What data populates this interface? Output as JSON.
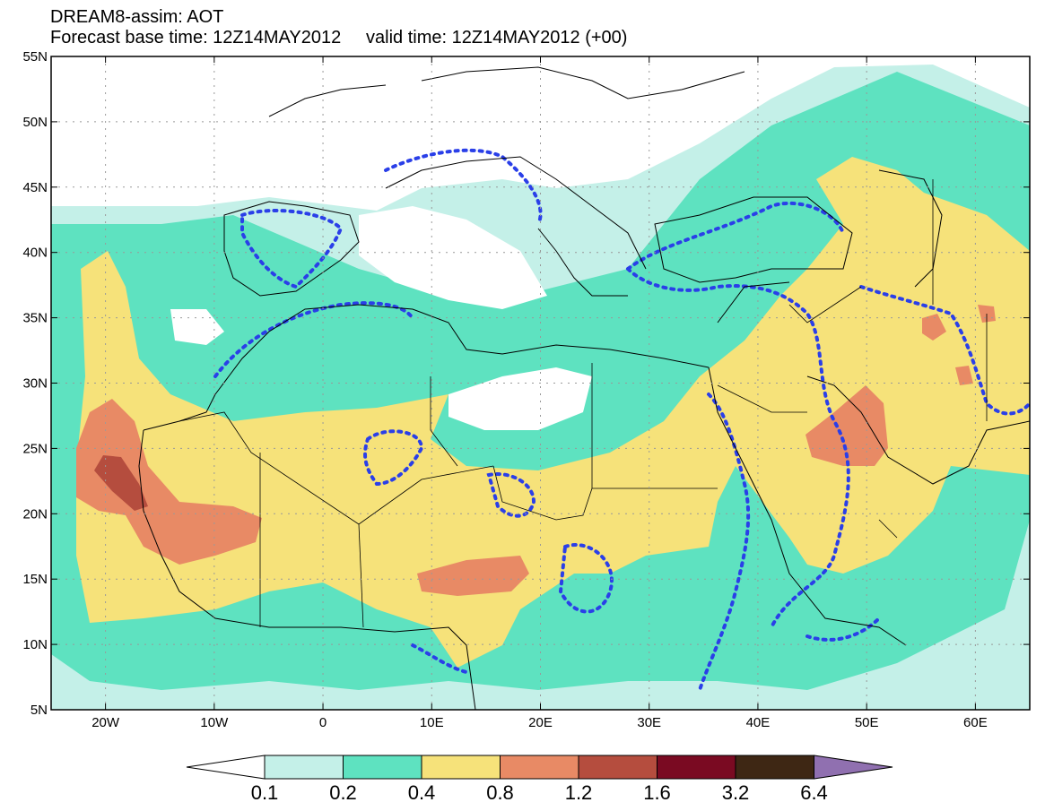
{
  "title": {
    "line1": "DREAM8-assim: AOT",
    "line2": "Forecast base time: 12Z14MAY2012     valid time: 12Z14MAY2012 (+00)"
  },
  "map": {
    "lon_range": [
      -25,
      65
    ],
    "lat_range": [
      5,
      55
    ],
    "lat_ticks": [
      {
        "value": 55,
        "label": "55N"
      },
      {
        "value": 50,
        "label": "50N"
      },
      {
        "value": 45,
        "label": "45N"
      },
      {
        "value": 40,
        "label": "40N"
      },
      {
        "value": 35,
        "label": "35N"
      },
      {
        "value": 30,
        "label": "30N"
      },
      {
        "value": 25,
        "label": "25N"
      },
      {
        "value": 20,
        "label": "20N"
      },
      {
        "value": 15,
        "label": "15N"
      },
      {
        "value": 10,
        "label": "10N"
      },
      {
        "value": 5,
        "label": "5N"
      }
    ],
    "lon_ticks": [
      {
        "value": -20,
        "label": "20W"
      },
      {
        "value": -10,
        "label": "10W"
      },
      {
        "value": 0,
        "label": "0"
      },
      {
        "value": 10,
        "label": "10E"
      },
      {
        "value": 20,
        "label": "20E"
      },
      {
        "value": 30,
        "label": "30E"
      },
      {
        "value": 40,
        "label": "40E"
      },
      {
        "value": 50,
        "label": "50E"
      },
      {
        "value": 60,
        "label": "60E"
      }
    ]
  },
  "colorbar": {
    "colors": [
      "#c4f0e8",
      "#5ee2c0",
      "#f6e27a",
      "#e88a65",
      "#b54d3e",
      "#7a0a22",
      "#3e2714"
    ],
    "under_color": "#ffffff",
    "over_color": "#9070b0",
    "labels": [
      "0.1",
      "0.2",
      "0.4",
      "0.8",
      "1.2",
      "1.6",
      "3.2",
      "6.4"
    ]
  }
}
